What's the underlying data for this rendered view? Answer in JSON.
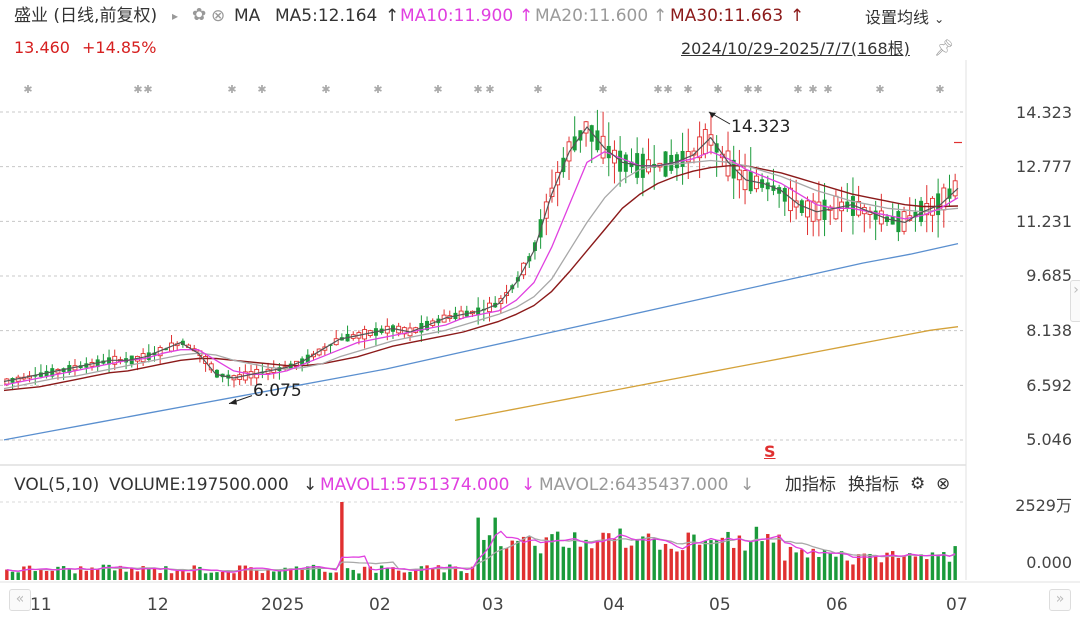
{
  "header": {
    "stock_title": "盛业 (日线,前复权)",
    "ma_label": "MA",
    "ma5": "MA5:12.164",
    "ma10": "MA10:11.900",
    "ma20": "MA20:11.600",
    "ma30": "MA30:11.663",
    "arrow_up": "↑",
    "settings_label": "设置均线",
    "price": "13.460",
    "change": "+14.85%",
    "date_range": "2024/10/29-2025/7/7(168根)"
  },
  "colors": {
    "up": "#e03030",
    "down": "#1a9a3a",
    "ma5": "#555555",
    "ma10": "#e040e0",
    "ma20": "#a8a8a8",
    "ma30": "#8b1a1a",
    "ma_long1": "#5a8fcf",
    "ma_long2": "#d4a23a"
  },
  "volume_header": {
    "vol_label": "VOL(5,10)",
    "volume": "VOLUME:197500.000",
    "mavol1": "MAVOL1:5751374.000",
    "mavol2": "MAVOL2:6435437.000",
    "arrow_down": "↓",
    "add_indicator": "加指标",
    "switch_indicator": "换指标"
  },
  "chart_data": {
    "type": "candlestick",
    "price_axis_ticks": [
      "14.323",
      "12.777",
      "11.231",
      "9.685",
      "8.138",
      "6.592",
      "5.046"
    ],
    "price_range": [
      5.046,
      14.323
    ],
    "volume_axis_ticks": [
      "2529万",
      "0.000"
    ],
    "x_tick_labels": [
      "11",
      "12",
      "2025",
      "02",
      "03",
      "04",
      "05",
      "06",
      "07"
    ],
    "annotations": {
      "high": "14.323",
      "low": "6.075",
      "marker": "S"
    },
    "series": [
      {
        "name": "MA5",
        "values": [
          6.7,
          6.8,
          6.9,
          7.0,
          7.1,
          7.2,
          7.3,
          7.3,
          7.4,
          7.6,
          7.8,
          7.5,
          6.9,
          6.8,
          6.9,
          7.0,
          7.1,
          7.3,
          7.6,
          7.9,
          8.0,
          8.1,
          8.2,
          8.1,
          8.3,
          8.5,
          8.6,
          8.7,
          8.9,
          9.5,
          10.4,
          12.0,
          13.2,
          13.9,
          13.3,
          12.9,
          12.8,
          12.8,
          12.9,
          13.1,
          13.6,
          12.9,
          12.4,
          12.3,
          12.1,
          11.7,
          11.5,
          11.6,
          11.7,
          11.5,
          11.3,
          11.2,
          11.5,
          11.7,
          12.164
        ]
      },
      {
        "name": "MA10",
        "values": [
          6.6,
          6.7,
          6.8,
          6.9,
          7.0,
          7.1,
          7.2,
          7.3,
          7.35,
          7.5,
          7.6,
          7.6,
          7.3,
          7.0,
          6.9,
          6.9,
          7.0,
          7.2,
          7.4,
          7.6,
          7.8,
          7.9,
          8.0,
          8.1,
          8.2,
          8.3,
          8.5,
          8.6,
          8.7,
          9.0,
          9.5,
          10.5,
          11.7,
          12.9,
          13.2,
          13.0,
          12.8,
          12.8,
          12.9,
          13.0,
          13.2,
          13.0,
          12.7,
          12.5,
          12.3,
          12.0,
          11.7,
          11.6,
          11.6,
          11.5,
          11.4,
          11.3,
          11.4,
          11.6,
          11.9
        ]
      },
      {
        "name": "MA20",
        "values": [
          6.5,
          6.6,
          6.7,
          6.8,
          6.85,
          6.95,
          7.05,
          7.15,
          7.25,
          7.35,
          7.45,
          7.5,
          7.45,
          7.3,
          7.2,
          7.1,
          7.05,
          7.1,
          7.2,
          7.4,
          7.55,
          7.7,
          7.85,
          7.95,
          8.05,
          8.15,
          8.3,
          8.45,
          8.6,
          8.8,
          9.1,
          9.6,
          10.4,
          11.2,
          11.9,
          12.4,
          12.7,
          12.8,
          12.85,
          12.9,
          12.95,
          12.9,
          12.8,
          12.65,
          12.5,
          12.3,
          12.1,
          11.95,
          11.8,
          11.7,
          11.6,
          11.55,
          11.5,
          11.55,
          11.6
        ]
      },
      {
        "name": "MA30",
        "values": [
          6.45,
          6.5,
          6.55,
          6.65,
          6.75,
          6.85,
          6.95,
          7.0,
          7.1,
          7.2,
          7.3,
          7.35,
          7.35,
          7.3,
          7.25,
          7.2,
          7.15,
          7.15,
          7.2,
          7.3,
          7.4,
          7.55,
          7.7,
          7.8,
          7.9,
          8.0,
          8.1,
          8.25,
          8.4,
          8.6,
          8.85,
          9.25,
          9.8,
          10.4,
          11.0,
          11.6,
          12.0,
          12.3,
          12.5,
          12.65,
          12.75,
          12.8,
          12.8,
          12.7,
          12.6,
          12.45,
          12.3,
          12.15,
          12.0,
          11.9,
          11.8,
          11.7,
          11.65,
          11.65,
          11.663
        ]
      },
      {
        "name": "MA-long-1",
        "values": [
          5.05,
          5.3,
          5.55,
          5.8,
          6.05,
          6.3,
          6.55,
          6.8,
          7.05,
          7.35,
          7.65,
          7.95,
          8.25,
          8.55,
          8.85,
          9.15,
          9.45,
          9.75,
          10.05,
          10.3,
          10.6
        ]
      },
      {
        "name": "MA-long-2",
        "values": [
          5.6,
          5.75,
          5.9,
          6.05,
          6.2,
          6.35,
          6.5,
          6.65,
          6.8,
          6.95,
          7.1,
          7.25,
          7.4,
          7.55,
          7.7,
          7.85,
          8.0,
          8.15,
          8.25
        ]
      }
    ]
  }
}
